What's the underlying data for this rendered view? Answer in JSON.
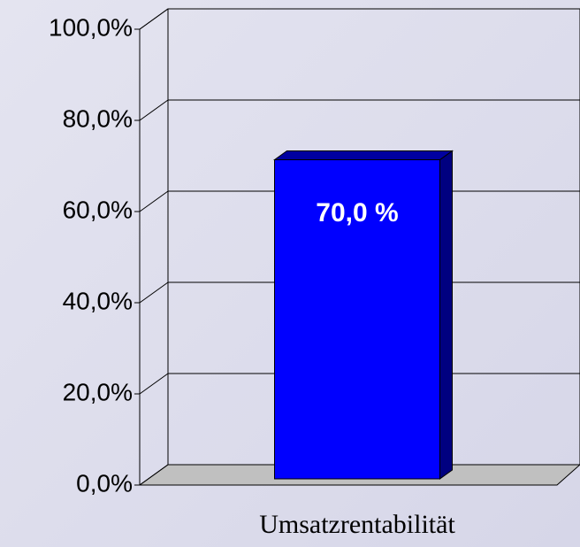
{
  "chart_data": {
    "type": "bar3d",
    "categories": [
      "Umsatzrentabilität"
    ],
    "values": [
      70
    ],
    "value_labels": [
      "70,0 %"
    ],
    "color": "#0000ff",
    "ylim": [
      0,
      100
    ],
    "yticks": [
      {
        "value": 0,
        "label": "0,0%"
      },
      {
        "value": 20,
        "label": "20,0%"
      },
      {
        "value": 40,
        "label": "40,0%"
      },
      {
        "value": 60,
        "label": "60,0%"
      },
      {
        "value": 80,
        "label": "80,0%"
      },
      {
        "value": 100,
        "label": "100,0%"
      }
    ],
    "grid": true
  }
}
